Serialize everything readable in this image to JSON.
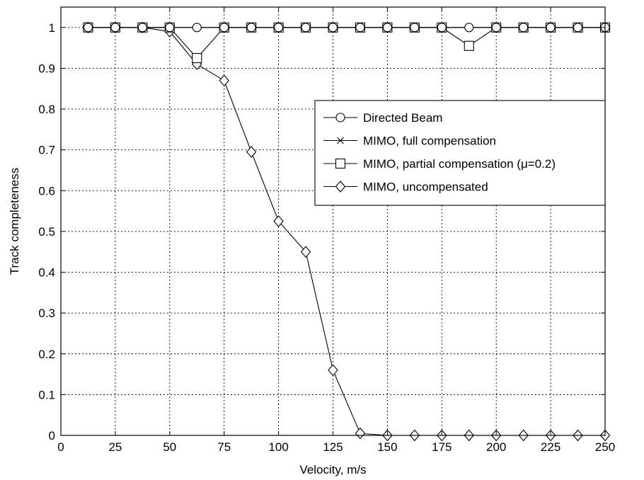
{
  "chart_data": {
    "type": "line",
    "title": "",
    "xlabel": "Velocity, m/s",
    "ylabel": "Track completeness",
    "xlim": [
      0,
      250
    ],
    "ylim": [
      0,
      1.05
    ],
    "xticks": [
      0,
      25,
      50,
      75,
      100,
      125,
      150,
      175,
      200,
      225,
      250
    ],
    "yticks": [
      0,
      0.1,
      0.2,
      0.3,
      0.4,
      0.5,
      0.6,
      0.7,
      0.8,
      0.9,
      1
    ],
    "grid": true,
    "legend_position": "center-right",
    "x": [
      12.5,
      25,
      37.5,
      50,
      62.5,
      75,
      87.5,
      100,
      112.5,
      125,
      137.5,
      150,
      162.5,
      175,
      187.5,
      200,
      212.5,
      225,
      237.5,
      250
    ],
    "series": [
      {
        "name": "Directed Beam",
        "marker": "circle",
        "values": [
          1,
          1,
          1,
          1,
          1,
          1,
          1,
          1,
          1,
          1,
          1,
          1,
          1,
          1,
          1,
          1,
          1,
          1,
          1,
          1
        ]
      },
      {
        "name": "MIMO, full compensation",
        "marker": "x",
        "values": [
          1,
          1,
          1,
          1,
          1,
          1,
          1,
          1,
          1,
          1,
          1,
          1,
          1,
          1,
          1,
          1,
          1,
          1,
          1,
          1
        ]
      },
      {
        "name": "MIMO, partial compensation (μ=0.2)",
        "marker": "square",
        "values": [
          1,
          1,
          1,
          1,
          0.925,
          1,
          1,
          1,
          1,
          1,
          1,
          1,
          1,
          1,
          0.955,
          1,
          1,
          1,
          1,
          1
        ]
      },
      {
        "name": "MIMO, uncompensated",
        "marker": "diamond",
        "values": [
          1,
          1,
          1,
          0.99,
          0.91,
          0.87,
          0.695,
          0.525,
          0.45,
          0.16,
          0.005,
          0,
          0,
          0,
          0,
          0,
          0,
          0,
          0,
          0
        ]
      }
    ]
  }
}
